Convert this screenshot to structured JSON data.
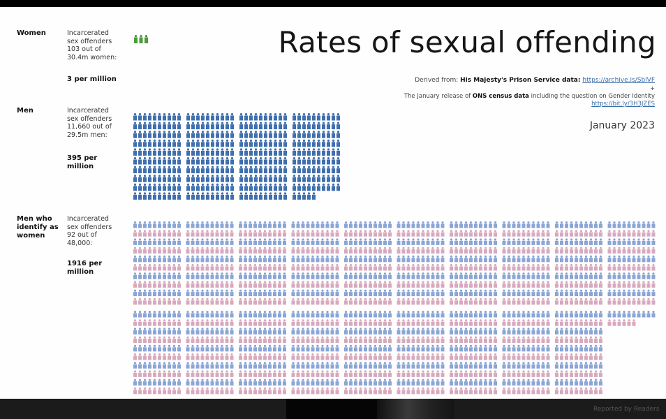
{
  "header": {
    "title": "Rates of sexual offending",
    "source_prefix": "Derived from: ",
    "source_1_name": "His Majesty's Prison Service data:",
    "source_1_link": "https://archive.is/SblVF",
    "plus": "+",
    "source_2_prefix": "The January release of ",
    "source_2_name": "ONS census data",
    "source_2_suffix": " including the question on Gender Identity",
    "source_2_link": "https://bit.ly/3H3JZES",
    "date": "January 2023"
  },
  "groups": [
    {
      "label": "Women",
      "desc": [
        "Incarcerated",
        "sex offenders",
        "103 out of",
        "30.4m women:"
      ],
      "rate": [
        "3 per million"
      ]
    },
    {
      "label": "Men",
      "desc": [
        "Incarcerated",
        "sex offenders",
        "11,660 out of",
        "29.5m men:"
      ],
      "rate": [
        "395 per",
        "million"
      ]
    },
    {
      "label": "Men who identify as women",
      "label_lines": [
        "Men who",
        "identify as",
        "women"
      ],
      "desc": [
        "Incarcerated",
        "sex offenders",
        "92 out of",
        "48,000:"
      ],
      "rate": [
        "1916 per",
        "million"
      ]
    }
  ],
  "chart_data": {
    "type": "pictogram",
    "categories": [
      "Women",
      "Men",
      "Men who identify as women"
    ],
    "values": [
      3,
      395,
      1916
    ],
    "unit": "per million",
    "colors": {
      "women": "#4c9a3c",
      "men": "#3f6fae",
      "tw_blue": "#8aa5d6",
      "tw_pink": "#d8a9bd"
    }
  },
  "footer": {
    "corner_text": "Reported by Readers"
  }
}
